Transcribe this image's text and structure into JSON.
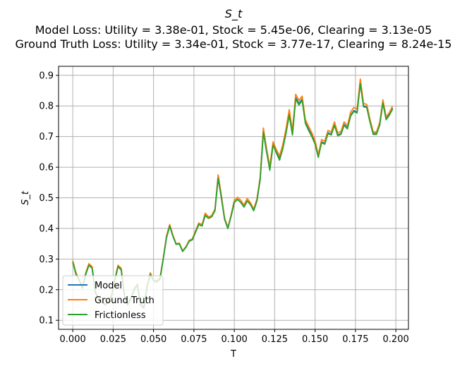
{
  "chart_data": {
    "type": "line",
    "title": "S_t",
    "subtitle_lines": [
      "Model Loss: Utility = 3.38e-01, Stock = 5.45e-06, Clearing = 3.13e-05",
      "Ground Truth Loss: Utility = 3.34e-01, Stock = 3.77e-17, Clearing = 8.24e-15"
    ],
    "xlabel": "T",
    "ylabel": "S_t",
    "xlim": [
      -0.0088,
      0.2078
    ],
    "ylim": [
      0.0705,
      0.9295
    ],
    "xticks": [
      0.0,
      0.025,
      0.05,
      0.075,
      0.1,
      0.125,
      0.15,
      0.175,
      0.2
    ],
    "xtick_labels": [
      "0.000",
      "0.025",
      "0.050",
      "0.075",
      "0.100",
      "0.125",
      "0.150",
      "0.175",
      "0.200"
    ],
    "yticks": [
      0.1,
      0.2,
      0.3,
      0.4,
      0.5,
      0.6,
      0.7,
      0.8,
      0.9
    ],
    "ytick_labels": [
      "0.1",
      "0.2",
      "0.3",
      "0.4",
      "0.5",
      "0.6",
      "0.7",
      "0.8",
      "0.9"
    ],
    "grid": true,
    "legend_position": "lower-left",
    "x": [
      0.0,
      0.002,
      0.004,
      0.006,
      0.008,
      0.01,
      0.012,
      0.014,
      0.016,
      0.018,
      0.02,
      0.022,
      0.024,
      0.026,
      0.028,
      0.03,
      0.032,
      0.034,
      0.036,
      0.038,
      0.04,
      0.042,
      0.044,
      0.046,
      0.048,
      0.05,
      0.052,
      0.054,
      0.056,
      0.058,
      0.06,
      0.062,
      0.064,
      0.066,
      0.068,
      0.07,
      0.072,
      0.074,
      0.076,
      0.078,
      0.08,
      0.082,
      0.084,
      0.086,
      0.088,
      0.09,
      0.092,
      0.094,
      0.096,
      0.098,
      0.1,
      0.102,
      0.104,
      0.106,
      0.108,
      0.11,
      0.112,
      0.114,
      0.116,
      0.118,
      0.12,
      0.122,
      0.124,
      0.126,
      0.128,
      0.13,
      0.132,
      0.134,
      0.136,
      0.138,
      0.14,
      0.142,
      0.144,
      0.146,
      0.148,
      0.15,
      0.152,
      0.154,
      0.156,
      0.158,
      0.16,
      0.162,
      0.164,
      0.166,
      0.168,
      0.17,
      0.172,
      0.174,
      0.176,
      0.178,
      0.18,
      0.182,
      0.184,
      0.186,
      0.188,
      0.19,
      0.192,
      0.194,
      0.196,
      0.198
    ],
    "series": [
      {
        "name": "Model",
        "color": "#1f77b4",
        "values": [
          0.29,
          0.25,
          0.23,
          0.205,
          0.25,
          0.28,
          0.27,
          0.19,
          0.17,
          0.16,
          0.15,
          0.16,
          0.18,
          0.23,
          0.275,
          0.265,
          0.18,
          0.15,
          0.17,
          0.2,
          0.215,
          0.15,
          0.14,
          0.21,
          0.25,
          0.23,
          0.225,
          0.235,
          0.3,
          0.37,
          0.408,
          0.375,
          0.348,
          0.35,
          0.325,
          0.338,
          0.358,
          0.363,
          0.388,
          0.413,
          0.408,
          0.443,
          0.433,
          0.438,
          0.458,
          0.565,
          0.5,
          0.43,
          0.4,
          0.44,
          0.485,
          0.495,
          0.485,
          0.47,
          0.49,
          0.478,
          0.458,
          0.49,
          0.56,
          0.715,
          0.65,
          0.595,
          0.675,
          0.65,
          0.63,
          0.665,
          0.715,
          0.775,
          0.71,
          0.828,
          0.808,
          0.823,
          0.748,
          0.725,
          0.705,
          0.68,
          0.635,
          0.683,
          0.678,
          0.713,
          0.708,
          0.74,
          0.705,
          0.71,
          0.74,
          0.728,
          0.77,
          0.785,
          0.78,
          0.878,
          0.8,
          0.798,
          0.75,
          0.71,
          0.71,
          0.74,
          0.813,
          0.758,
          0.773,
          0.793
        ]
      },
      {
        "name": "Ground Truth",
        "color": "#ff7f0e",
        "values": [
          0.295,
          0.255,
          0.233,
          0.208,
          0.255,
          0.285,
          0.275,
          0.193,
          0.172,
          0.162,
          0.152,
          0.162,
          0.183,
          0.233,
          0.28,
          0.27,
          0.182,
          0.152,
          0.172,
          0.203,
          0.218,
          0.152,
          0.142,
          0.213,
          0.255,
          0.233,
          0.228,
          0.238,
          0.303,
          0.375,
          0.413,
          0.378,
          0.35,
          0.352,
          0.327,
          0.34,
          0.361,
          0.366,
          0.392,
          0.418,
          0.412,
          0.45,
          0.438,
          0.442,
          0.463,
          0.575,
          0.508,
          0.434,
          0.403,
          0.444,
          0.492,
          0.502,
          0.492,
          0.476,
          0.498,
          0.484,
          0.463,
          0.496,
          0.567,
          0.728,
          0.66,
          0.603,
          0.683,
          0.658,
          0.637,
          0.673,
          0.725,
          0.788,
          0.72,
          0.838,
          0.818,
          0.832,
          0.755,
          0.733,
          0.712,
          0.687,
          0.64,
          0.69,
          0.685,
          0.72,
          0.715,
          0.748,
          0.712,
          0.717,
          0.748,
          0.735,
          0.78,
          0.795,
          0.79,
          0.888,
          0.808,
          0.805,
          0.756,
          0.715,
          0.715,
          0.746,
          0.82,
          0.764,
          0.779,
          0.8
        ]
      },
      {
        "name": "Frictionless",
        "color": "#2ca02c",
        "values": [
          0.29,
          0.25,
          0.23,
          0.205,
          0.25,
          0.28,
          0.27,
          0.19,
          0.17,
          0.16,
          0.15,
          0.16,
          0.18,
          0.23,
          0.275,
          0.265,
          0.18,
          0.15,
          0.17,
          0.2,
          0.215,
          0.15,
          0.14,
          0.21,
          0.25,
          0.23,
          0.225,
          0.235,
          0.3,
          0.37,
          0.408,
          0.375,
          0.348,
          0.35,
          0.325,
          0.338,
          0.358,
          0.363,
          0.388,
          0.413,
          0.408,
          0.443,
          0.433,
          0.438,
          0.458,
          0.565,
          0.5,
          0.43,
          0.4,
          0.44,
          0.485,
          0.495,
          0.485,
          0.47,
          0.49,
          0.478,
          0.458,
          0.49,
          0.56,
          0.715,
          0.65,
          0.59,
          0.672,
          0.647,
          0.623,
          0.66,
          0.71,
          0.77,
          0.705,
          0.823,
          0.803,
          0.818,
          0.743,
          0.72,
          0.7,
          0.675,
          0.632,
          0.68,
          0.675,
          0.71,
          0.705,
          0.737,
          0.703,
          0.707,
          0.737,
          0.725,
          0.767,
          0.782,
          0.777,
          0.873,
          0.797,
          0.795,
          0.747,
          0.707,
          0.707,
          0.737,
          0.81,
          0.755,
          0.77,
          0.79
        ]
      }
    ]
  }
}
